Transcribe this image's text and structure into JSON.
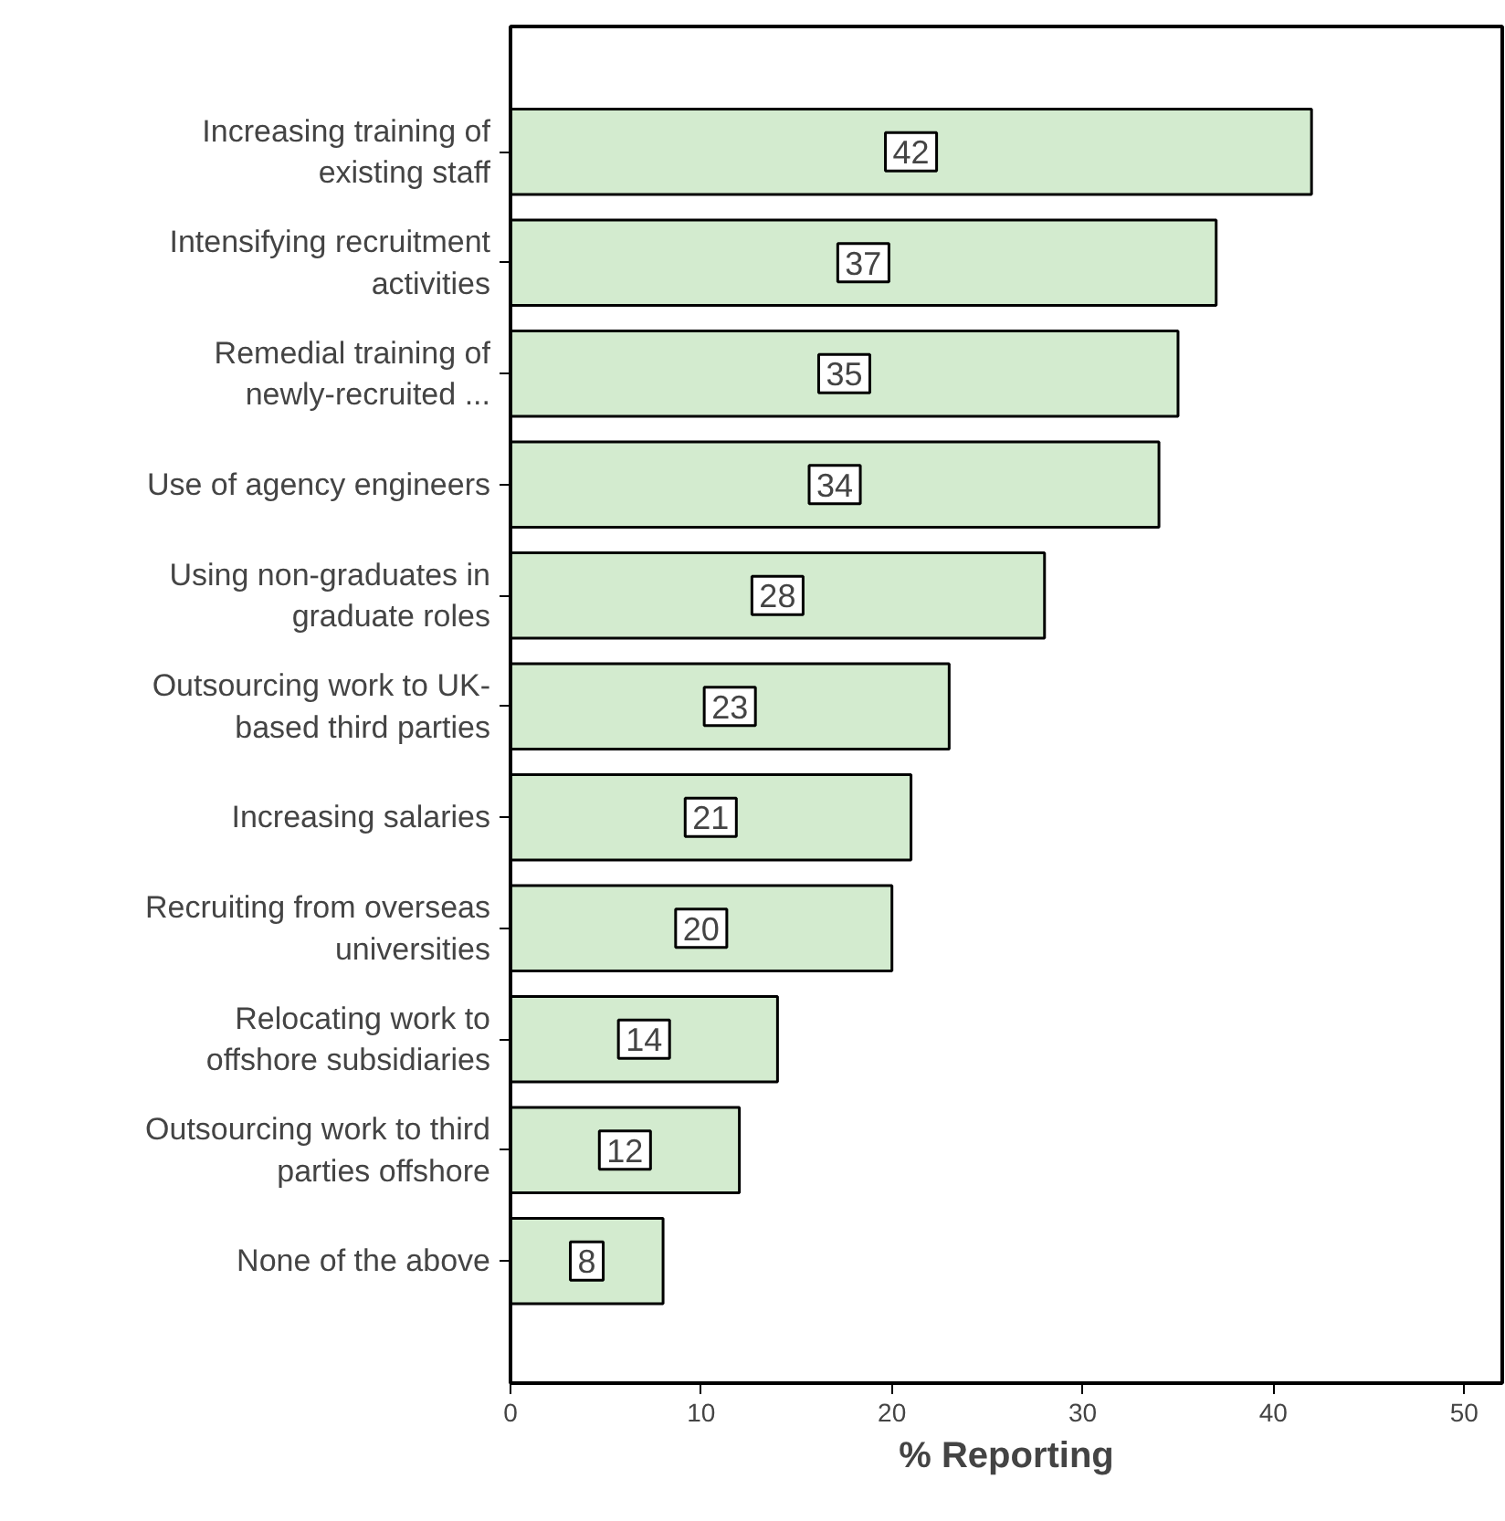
{
  "chart_data": {
    "type": "bar",
    "orientation": "horizontal",
    "xlabel": "% Reporting",
    "categories": [
      "Increasing training of existing staff",
      "Intensifying recruitment activities",
      "Remedial training of newly-recruited ...",
      "Use of agency engineers",
      "Using non-graduates in graduate roles",
      "Outsourcing work to UK-based third parties",
      "Increasing salaries",
      "Recruiting from overseas universities",
      "Relocating work to offshore subsidiaries",
      "Outsourcing work to third parties offshore",
      "None of the above"
    ],
    "values": [
      42,
      37,
      35,
      34,
      28,
      23,
      21,
      20,
      14,
      12,
      8
    ],
    "color": "#d3ebcf",
    "data_labels": true,
    "xlim": [
      0,
      52
    ],
    "xticks": [
      0,
      10,
      20,
      30,
      40,
      50
    ],
    "grid": false
  }
}
